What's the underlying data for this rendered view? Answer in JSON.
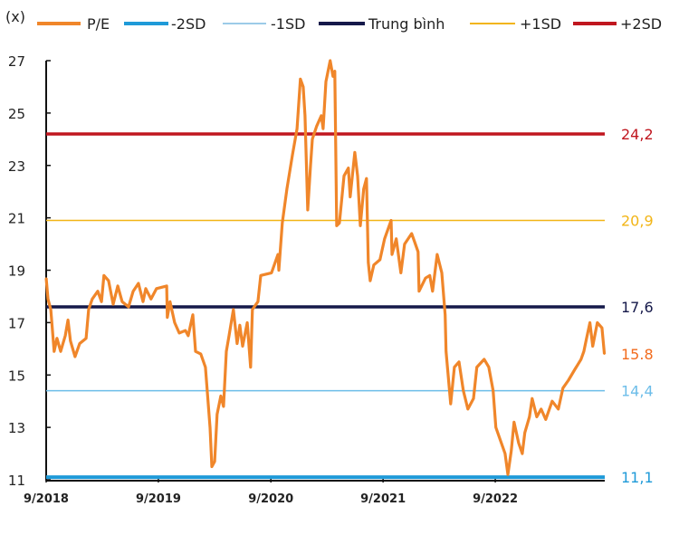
{
  "chart_data": {
    "type": "line",
    "title": "",
    "ylabel": "(x)",
    "xlabel": "",
    "ylim": [
      11,
      27
    ],
    "yticks": [
      11,
      13,
      15,
      17,
      19,
      21,
      23,
      25,
      27
    ],
    "xlim": [
      "2018-09-01",
      "2023-09-01"
    ],
    "xticks": [
      {
        "date": "2018-09-01",
        "label": "9/2018"
      },
      {
        "date": "2019-09-01",
        "label": "9/2019"
      },
      {
        "date": "2020-09-01",
        "label": "9/2020"
      },
      {
        "date": "2021-09-01",
        "label": "9/2021"
      },
      {
        "date": "2022-09-01",
        "label": "9/2022"
      }
    ],
    "grid": false,
    "legend_position": "top",
    "legend": [
      "P/E",
      "-2SD",
      "-1SD",
      "Trung bình",
      "+1SD",
      "+2SD"
    ],
    "reference_lines": [
      {
        "name": "-2SD",
        "value": 11.1,
        "label": "11,1",
        "color": "#1f9ad8"
      },
      {
        "name": "-1SD",
        "value": 14.4,
        "label": "14,4",
        "color": "#6cbde9"
      },
      {
        "name": "Trung bình",
        "value": 17.6,
        "label": "17,6",
        "color": "#15194a"
      },
      {
        "name": "+1SD",
        "value": 20.9,
        "label": "20,9",
        "color": "#f2b516"
      },
      {
        "name": "+2SD",
        "value": 24.2,
        "label": "24,2",
        "color": "#c0161f"
      }
    ],
    "series": [
      {
        "name": "P/E",
        "color": "#f0862a",
        "last_label": "15.8",
        "last_label_color": "#f26b1d",
        "points": [
          [
            "2018-09-01",
            18.7
          ],
          [
            "2018-09-07",
            17.9
          ],
          [
            "2018-09-16",
            17.5
          ],
          [
            "2018-09-27",
            15.9
          ],
          [
            "2018-10-06",
            16.4
          ],
          [
            "2018-10-18",
            15.9
          ],
          [
            "2018-11-02",
            16.5
          ],
          [
            "2018-11-11",
            17.1
          ],
          [
            "2018-11-19",
            16.3
          ],
          [
            "2018-12-04",
            15.7
          ],
          [
            "2018-12-19",
            16.2
          ],
          [
            "2019-01-09",
            16.4
          ],
          [
            "2019-01-17",
            17.5
          ],
          [
            "2019-01-29",
            17.9
          ],
          [
            "2019-02-16",
            18.2
          ],
          [
            "2019-02-28",
            17.8
          ],
          [
            "2019-03-08",
            18.8
          ],
          [
            "2019-03-23",
            18.6
          ],
          [
            "2019-04-07",
            17.7
          ],
          [
            "2019-04-22",
            18.4
          ],
          [
            "2019-05-06",
            17.8
          ],
          [
            "2019-05-27",
            17.6
          ],
          [
            "2019-06-11",
            18.2
          ],
          [
            "2019-06-28",
            18.5
          ],
          [
            "2019-07-13",
            17.8
          ],
          [
            "2019-07-22",
            18.3
          ],
          [
            "2019-08-08",
            17.9
          ],
          [
            "2019-08-26",
            18.3
          ],
          [
            "2019-09-28",
            18.4
          ],
          [
            "2019-09-30",
            17.2
          ],
          [
            "2019-10-09",
            17.8
          ],
          [
            "2019-10-24",
            17.0
          ],
          [
            "2019-11-08",
            16.6
          ],
          [
            "2019-11-28",
            16.7
          ],
          [
            "2019-12-07",
            16.5
          ],
          [
            "2019-12-22",
            17.3
          ],
          [
            "2019-12-31",
            15.9
          ],
          [
            "2020-01-17",
            15.8
          ],
          [
            "2020-02-01",
            15.3
          ],
          [
            "2020-02-07",
            14.4
          ],
          [
            "2020-02-16",
            13.0
          ],
          [
            "2020-02-22",
            11.5
          ],
          [
            "2020-03-02",
            11.7
          ],
          [
            "2020-03-10",
            13.5
          ],
          [
            "2020-03-22",
            14.2
          ],
          [
            "2020-03-31",
            13.8
          ],
          [
            "2020-04-09",
            15.9
          ],
          [
            "2020-04-18",
            16.5
          ],
          [
            "2020-05-02",
            17.5
          ],
          [
            "2020-05-14",
            16.2
          ],
          [
            "2020-05-23",
            16.9
          ],
          [
            "2020-06-01",
            16.1
          ],
          [
            "2020-06-16",
            17.0
          ],
          [
            "2020-06-27",
            15.3
          ],
          [
            "2020-07-03",
            17.5
          ],
          [
            "2020-07-21",
            17.8
          ],
          [
            "2020-07-30",
            18.8
          ],
          [
            "2020-09-03",
            18.9
          ],
          [
            "2020-09-24",
            19.6
          ],
          [
            "2020-09-27",
            19.0
          ],
          [
            "2020-10-08",
            20.8
          ],
          [
            "2020-10-23",
            22.1
          ],
          [
            "2020-11-10",
            23.4
          ],
          [
            "2020-11-25",
            24.4
          ],
          [
            "2020-12-06",
            26.3
          ],
          [
            "2020-12-15",
            26.0
          ],
          [
            "2020-12-21",
            24.9
          ],
          [
            "2020-12-30",
            21.3
          ],
          [
            "2021-01-08",
            23.0
          ],
          [
            "2021-01-14",
            24.0
          ],
          [
            "2021-01-28",
            24.5
          ],
          [
            "2021-02-12",
            24.9
          ],
          [
            "2021-02-18",
            24.4
          ],
          [
            "2021-02-27",
            26.2
          ],
          [
            "2021-03-13",
            27.0
          ],
          [
            "2021-03-22",
            26.4
          ],
          [
            "2021-03-28",
            26.6
          ],
          [
            "2021-04-03",
            20.7
          ],
          [
            "2021-04-12",
            20.8
          ],
          [
            "2021-04-27",
            22.6
          ],
          [
            "2021-05-11",
            22.9
          ],
          [
            "2021-05-17",
            21.8
          ],
          [
            "2021-06-01",
            23.5
          ],
          [
            "2021-06-10",
            22.6
          ],
          [
            "2021-06-19",
            20.7
          ],
          [
            "2021-06-30",
            22.1
          ],
          [
            "2021-07-09",
            22.5
          ],
          [
            "2021-07-15",
            19.3
          ],
          [
            "2021-07-21",
            18.6
          ],
          [
            "2021-08-02",
            19.2
          ],
          [
            "2021-08-22",
            19.4
          ],
          [
            "2021-09-06",
            20.2
          ],
          [
            "2021-09-27",
            20.9
          ],
          [
            "2021-09-30",
            19.6
          ],
          [
            "2021-10-14",
            20.2
          ],
          [
            "2021-10-29",
            18.9
          ],
          [
            "2021-11-10",
            20.0
          ],
          [
            "2021-12-03",
            20.4
          ],
          [
            "2021-12-12",
            20.1
          ],
          [
            "2021-12-24",
            19.7
          ],
          [
            "2021-12-27",
            18.2
          ],
          [
            "2022-01-17",
            18.7
          ],
          [
            "2022-01-31",
            18.8
          ],
          [
            "2022-02-09",
            18.2
          ],
          [
            "2022-02-24",
            19.6
          ],
          [
            "2022-03-11",
            18.9
          ],
          [
            "2022-03-22",
            17.3
          ],
          [
            "2022-03-25",
            15.9
          ],
          [
            "2022-04-09",
            13.9
          ],
          [
            "2022-04-21",
            15.3
          ],
          [
            "2022-05-06",
            15.5
          ],
          [
            "2022-05-20",
            14.4
          ],
          [
            "2022-06-04",
            13.7
          ],
          [
            "2022-06-22",
            14.1
          ],
          [
            "2022-07-03",
            15.3
          ],
          [
            "2022-07-27",
            15.6
          ],
          [
            "2022-08-11",
            15.3
          ],
          [
            "2022-08-25",
            14.4
          ],
          [
            "2022-09-03",
            13.0
          ],
          [
            "2022-09-18",
            12.5
          ],
          [
            "2022-10-03",
            12.0
          ],
          [
            "2022-10-12",
            11.2
          ],
          [
            "2022-10-23",
            12.1
          ],
          [
            "2022-11-01",
            13.2
          ],
          [
            "2022-11-16",
            12.4
          ],
          [
            "2022-11-28",
            12.0
          ],
          [
            "2022-12-06",
            12.8
          ],
          [
            "2022-12-21",
            13.4
          ],
          [
            "2022-12-30",
            14.1
          ],
          [
            "2023-01-14",
            13.4
          ],
          [
            "2023-01-28",
            13.7
          ],
          [
            "2023-02-12",
            13.3
          ],
          [
            "2023-03-05",
            14.0
          ],
          [
            "2023-03-25",
            13.7
          ],
          [
            "2023-04-09",
            14.5
          ],
          [
            "2023-04-27",
            14.8
          ],
          [
            "2023-05-17",
            15.2
          ],
          [
            "2023-06-07",
            15.6
          ],
          [
            "2023-06-16",
            15.9
          ],
          [
            "2023-06-25",
            16.4
          ],
          [
            "2023-07-06",
            17.0
          ],
          [
            "2023-07-15",
            16.1
          ],
          [
            "2023-07-30",
            17.0
          ],
          [
            "2023-08-14",
            16.8
          ],
          [
            "2023-08-22",
            15.8
          ]
        ]
      }
    ]
  }
}
